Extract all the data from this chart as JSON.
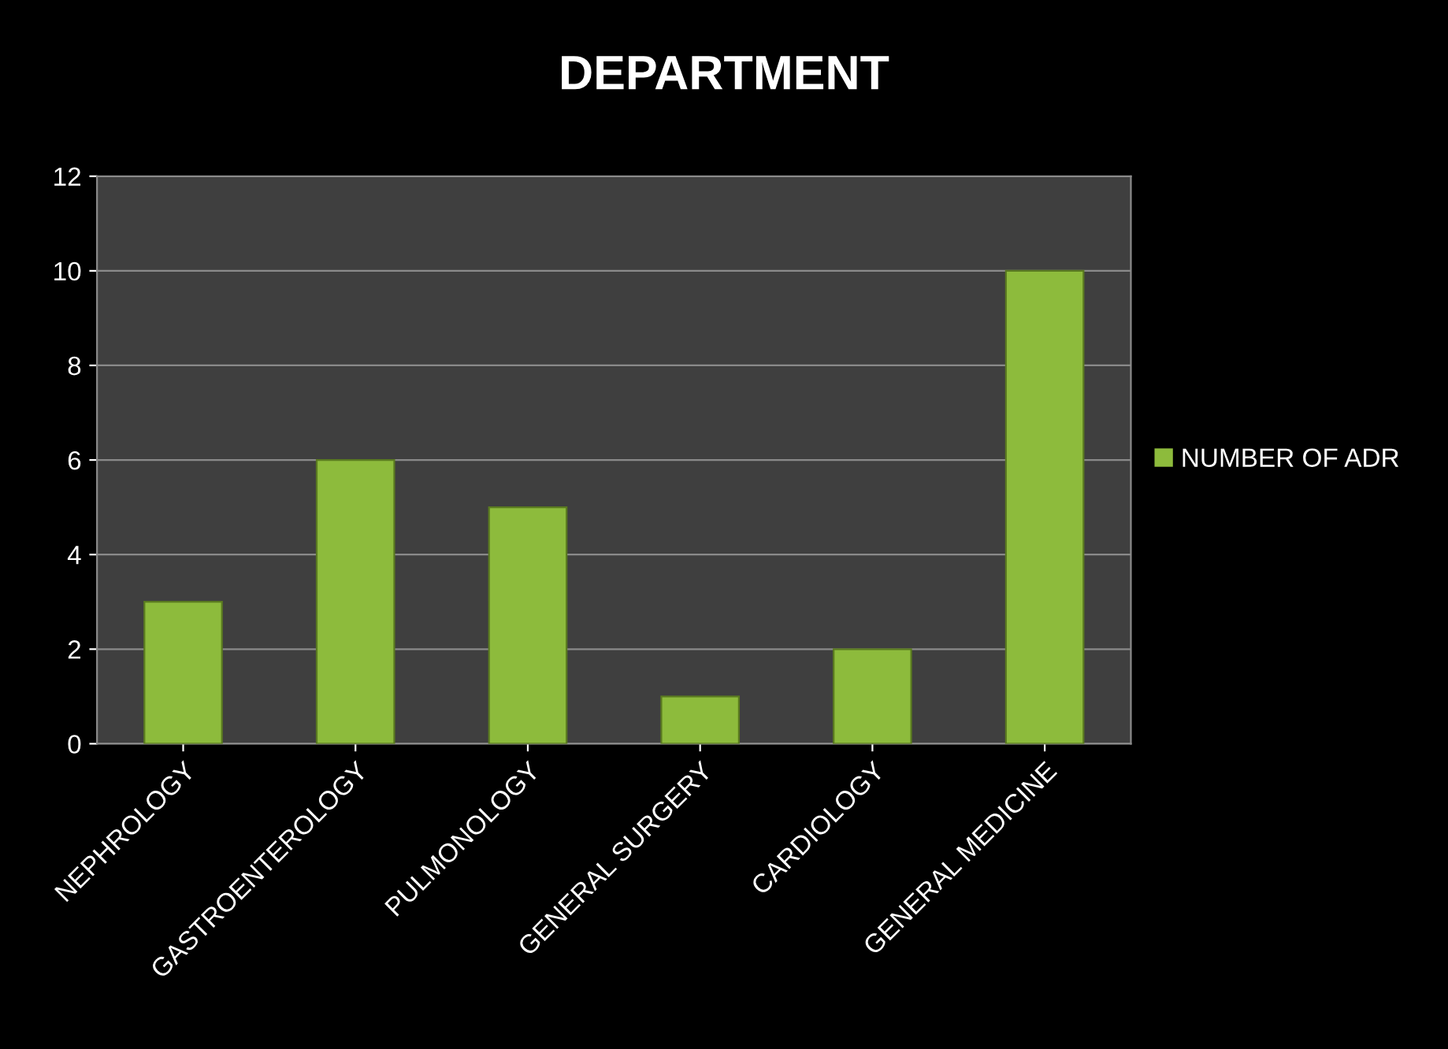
{
  "chart_data": {
    "type": "bar",
    "title": "DEPARTMENT",
    "categories": [
      "NEPHROLOGY",
      "GASTROENTEROLOGY",
      "PULMONOLOGY",
      "GENERAL SURGERY",
      "CARDIOLOGY",
      "GENERAL MEDICINE"
    ],
    "series": [
      {
        "name": "NUMBER OF ADR",
        "color": "#8dbb3c",
        "values": [
          3,
          6,
          5,
          1,
          2,
          10
        ]
      }
    ],
    "ylim": [
      0,
      12
    ],
    "yticks": [
      0,
      2,
      4,
      6,
      8,
      10,
      12
    ],
    "grid": "y",
    "legend": "right"
  }
}
